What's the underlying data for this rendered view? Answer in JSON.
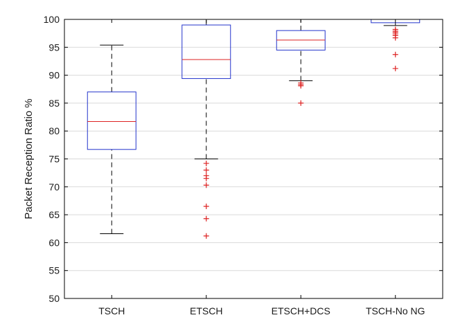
{
  "chart_data": {
    "type": "box",
    "title": "",
    "xlabel": "",
    "ylabel": "Packet Reception Ratio %",
    "ylim": [
      50,
      100
    ],
    "yticks": [
      50,
      55,
      60,
      65,
      70,
      75,
      80,
      85,
      90,
      95,
      100
    ],
    "grid": "horizontal",
    "categories": [
      "TSCH",
      "ETSCH",
      "ETSCH+DCS",
      "TSCH-No NG"
    ],
    "boxes": [
      {
        "category": "TSCH",
        "whisker_low": 61.6,
        "q1": 76.7,
        "median": 81.7,
        "q3": 87.0,
        "whisker_high": 95.4,
        "outliers": []
      },
      {
        "category": "ETSCH",
        "whisker_low": 75.0,
        "q1": 89.4,
        "median": 92.8,
        "q3": 99.0,
        "whisker_high": 100.0,
        "outliers": [
          74.2,
          73.0,
          72.0,
          71.5,
          70.3,
          66.5,
          64.3,
          61.2
        ]
      },
      {
        "category": "ETSCH+DCS",
        "whisker_low": 89.0,
        "q1": 94.5,
        "median": 96.3,
        "q3": 98.0,
        "whisker_high": 100.0,
        "outliers": [
          88.6,
          88.3,
          88.1,
          85.0
        ]
      },
      {
        "category": "TSCH-No NG",
        "whisker_low": 98.9,
        "q1": 99.4,
        "median": 100.0,
        "q3": 100.0,
        "whisker_high": 100.0,
        "outliers": [
          98.2,
          97.9,
          97.7,
          97.4,
          97.1,
          96.7,
          93.7,
          91.2
        ]
      }
    ],
    "colors": {
      "box": "#2233cc",
      "median": "#dd2222",
      "outlier": "#dd2222",
      "whisker": "#000000",
      "grid": "#d9d9d9",
      "axis": "#000000"
    }
  }
}
